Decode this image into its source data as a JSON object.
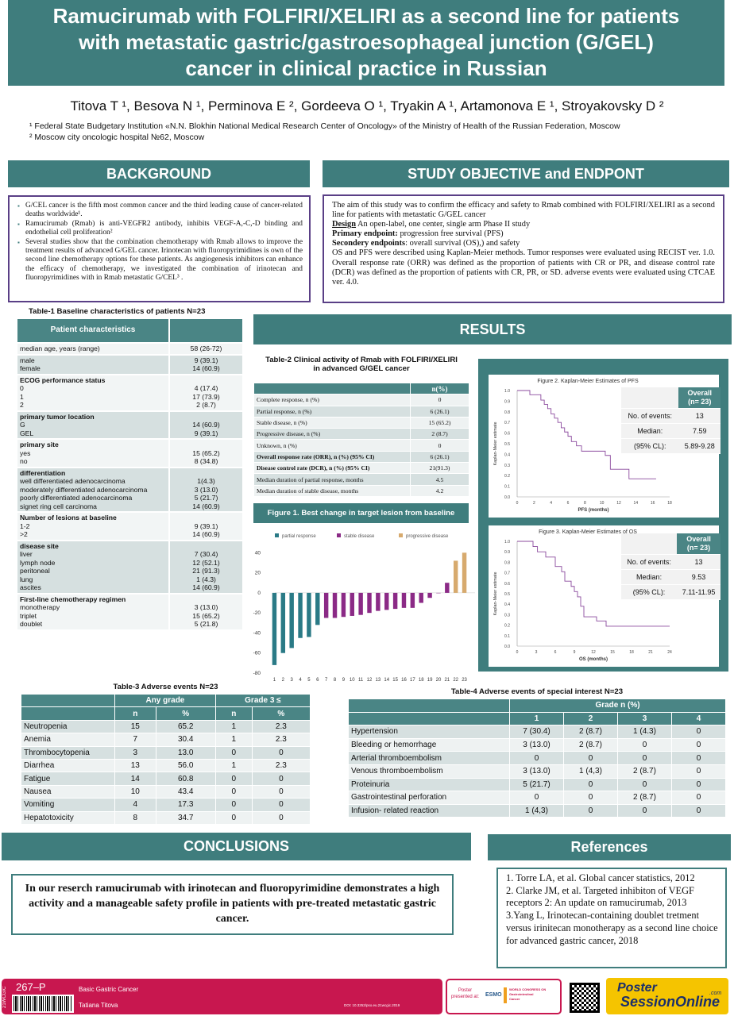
{
  "title": {
    "line1": "Ramucirumab with FOLFIRI/XELIRI as a second line for patients",
    "line2": "with metastatic gastric/gastroesophageal junction (G/GEL)",
    "line3": "cancer in clinical practice in Russian"
  },
  "authors": "Titova T ¹, Besova N ¹, Perminova E ², Gordeeva O ¹, Tryakin A ¹, Artamonova E ¹, Stroyakovsky D ²",
  "affiliations": [
    "¹ Federal State Budgetary Institution «N.N. Blokhin National Medical Research Center of Oncology» of the Ministry of Health of the Russian Federation, Moscow",
    "² Moscow city oncologic hospital  №62, Moscow"
  ],
  "background": {
    "heading": "BACKGROUND",
    "bullets": [
      "G/CEL cancer is the fifth most common cancer and the third leading cause of cancer-related deaths worldwide¹.",
      "Ramucirumab (Rmab) is anti-VEGFR2 antibody, inhibits VEGF-A,-C,-D binding and endothelial cell proliferation²",
      "Several studies show that the combination chemotherapy with Rmab allows to improve the treatment results of advanced G/GEL cancer. Irinotecan with fluoropyrimidines is own of the second line chemotherapy options for these patients. As angiogenesis inhibitors can enhance the efficacy of chemotherapy, we investigated the combination of irinotecan and fluoropyrimidines with in Rmab metastatic G/CEL³ ."
    ]
  },
  "objective": {
    "heading": "STUDY OBJECTIVE and ENDPONT",
    "intro": "The aim of this study was to confirm the efficacy and safety to Rmab combined with FOLFIRI/XELIRI as a second line for patients with metastatic G/GEL cancer",
    "design_label": "Design",
    "design_text": " An open-label, one center, single arm Phase II study",
    "primary_label": "Primary endpoint:",
    "primary_text": " progression free survival (PFS)",
    "secondary_label": "Secondery endpoints",
    "secondary_text": ": overall survival (OS),) and safety",
    "methods": "OS and PFS were described using Kaplan-Meier methods. Tumor responses were evaluated using RECIST ver. 1.0. Overall response rate (ORR) was defined as the proportion of patients with CR or PR, and disease control rate (DCR) was defined as the proportion of patients with CR, PR, or SD. adverse events were evaluated using CTCAE ver. 4.0."
  },
  "table1": {
    "caption": "Table-1 Baseline characteristics of patients  N=23",
    "header": "Patient characteristics",
    "rows": [
      {
        "label": "median age, years (range)",
        "value": "58 (26-72)",
        "shade": "w"
      },
      {
        "label": "male\nfemale",
        "value": "9 (39.1)\n14 (60.9)",
        "shade": "g"
      },
      {
        "label_b": "ECOG performance status",
        "label": "0\n1\n2",
        "value": "\n4 (17.4)\n17 (73.9)\n2 (8.7)",
        "shade": "w"
      },
      {
        "label_b": "primary tumor location",
        "label": "G\nGEL",
        "value": "\n14 (60.9)\n9 (39.1)",
        "shade": "g"
      },
      {
        "label_b": "primary site",
        "label": "yes\nno",
        "value": "\n15 (65.2)\n8 (34.8)",
        "shade": "w"
      },
      {
        "label_b": "differentiation",
        "label": "well differentiated adenocarcinoma\nmoderately differentiated adenocarcinoma\npoorly differentiated adenocarcinoma\nsignet ring cell carcinoma",
        "value": "\n1(4.3)\n3 (13.0)\n5 (21.7)\n14 (60.9)",
        "shade": "g"
      },
      {
        "label_b": "Number of lesions at baseline",
        "label": "1-2\n>2",
        "value": "\n9 (39.1)\n14 (60.9)",
        "shade": "w"
      },
      {
        "label_b": "disease site",
        "label": "liver\nlymph node\nperitoneal\nlung\nascites",
        "value": "\n7 (30.4)\n12 (52.1)\n21 (91.3)\n1 (4.3)\n14 (60.9)",
        "shade": "g"
      },
      {
        "label_b": "First-line chemotherapy regimen",
        "label": "monotherapy\ntriplet\ndoublet",
        "value": "\n3 (13.0)\n15 (65.2)\n5 (21.8)",
        "shade": "w"
      }
    ]
  },
  "results_heading": "RESULTS",
  "table2": {
    "caption1": "Table-2 Clinical activity of Rmab with FOLFIRI/XELIRI",
    "caption2": "in advanced G/GEL cancer",
    "col": "n(%)",
    "rows": [
      {
        "label": "Complete response, n (%)",
        "value": "0",
        "bold": false
      },
      {
        "label": "Partial response, n (%)",
        "value": "6 (26.1)",
        "bold": false
      },
      {
        "label": "Stable disease, n (%)",
        "value": "15 (65.2)",
        "bold": false
      },
      {
        "label": "Progressive disease, n (%)",
        "value": "2 (8.7)",
        "bold": false
      },
      {
        "label": "Unknown, n (%)",
        "value": "0",
        "bold": false
      },
      {
        "label": "Overall response rate (ORR), n (%) (95% CI)",
        "value": "6 (26.1)",
        "bold": true
      },
      {
        "label": "Disease control rate (DCR), n (%) (95% CI)",
        "value": "21(91.3)",
        "bold": true
      },
      {
        "label": "Median duration of partial response, months",
        "value": "4.5",
        "bold": false
      },
      {
        "label": "Median duration of stable disease, months",
        "value": "4.2",
        "bold": false
      }
    ]
  },
  "chart_data": [
    {
      "type": "bar",
      "title": "Figure 1. Best change in target lesion from baseline",
      "legend": [
        "partial response",
        "stable disease",
        "progressive disease"
      ],
      "colors": {
        "partial response": "#2a7a86",
        "stable disease": "#8b2a86",
        "progressive disease": "#d7aa6e"
      },
      "categories": [
        "1",
        "2",
        "3",
        "4",
        "5",
        "6",
        "7",
        "8",
        "9",
        "10",
        "11",
        "12",
        "13",
        "14",
        "15",
        "16",
        "17",
        "18",
        "19",
        "20",
        "21",
        "22",
        "23"
      ],
      "values": [
        -72,
        -60,
        -55,
        -45,
        -44,
        -32,
        -25,
        -25,
        -24,
        -23,
        -22,
        -20,
        -18,
        -17,
        -16,
        -15,
        -15,
        -10,
        -5,
        0,
        10,
        32,
        40
      ],
      "groups": [
        "partial response",
        "partial response",
        "partial response",
        "partial response",
        "partial response",
        "partial response",
        "stable disease",
        "stable disease",
        "stable disease",
        "stable disease",
        "stable disease",
        "stable disease",
        "stable disease",
        "stable disease",
        "stable disease",
        "stable disease",
        "stable disease",
        "stable disease",
        "stable disease",
        "stable disease",
        "stable disease",
        "progressive disease",
        "progressive disease"
      ],
      "yticks": [
        40,
        20,
        0,
        -20,
        -40,
        -60,
        -80
      ],
      "ylim": [
        -80,
        45
      ]
    },
    {
      "type": "line",
      "title": "Figure 2. Kaplan-Meier Estimates of PFS",
      "xlabel": "PFS (months)",
      "ylabel": "Kaplan-Meier estimate",
      "xticks": [
        0,
        2,
        4,
        6,
        8,
        10,
        12,
        14,
        16,
        18
      ],
      "yticks": [
        "0.0",
        "0.1",
        "0.2",
        "0.3",
        "0.4",
        "0.5",
        "0.6",
        "0.7",
        "0.8",
        "0.9",
        "1.0"
      ],
      "x": [
        0,
        1.5,
        2.8,
        3.2,
        3.6,
        4.0,
        4.4,
        4.8,
        5.2,
        5.6,
        6.0,
        6.4,
        7.0,
        7.6,
        8.0,
        9.0,
        10.4,
        11.0,
        12.4,
        13.2,
        16.4
      ],
      "y": [
        1.0,
        0.96,
        0.91,
        0.87,
        0.83,
        0.78,
        0.74,
        0.7,
        0.65,
        0.61,
        0.57,
        0.52,
        0.48,
        0.43,
        0.43,
        0.43,
        0.39,
        0.26,
        0.26,
        0.17,
        0.17
      ]
    },
    {
      "type": "line",
      "title": "Figure 3. Kaplan-Meier Estimates of OS",
      "xlabel": "OS (months)",
      "ylabel": "Kaplan-Meier estimate",
      "xticks": [
        0,
        3,
        6,
        9,
        12,
        15,
        18,
        21,
        24
      ],
      "yticks": [
        "0.0",
        "0.1",
        "0.2",
        "0.3",
        "0.4",
        "0.5",
        "0.6",
        "0.7",
        "0.8",
        "0.9",
        "1.0"
      ],
      "x": [
        0,
        2.5,
        3.2,
        4.5,
        6.0,
        7.0,
        7.5,
        8.5,
        9.0,
        9.5,
        10.0,
        10.5,
        12.5,
        14.0,
        24.0
      ],
      "y": [
        1.0,
        0.95,
        0.9,
        0.85,
        0.76,
        0.71,
        0.62,
        0.57,
        0.52,
        0.47,
        0.38,
        0.28,
        0.24,
        0.19,
        0.19
      ]
    }
  ],
  "km_pfs_table": {
    "header": "Overall\n(n= 23)",
    "rows": [
      {
        "label": "No. of events:",
        "value": "13"
      },
      {
        "label": "Median:",
        "value": "7.59"
      },
      {
        "label": "(95% CL):",
        "value": "5.89-9.28"
      }
    ]
  },
  "km_os_table": {
    "header": "Overall\n(n= 23)",
    "rows": [
      {
        "label": "No. of events:",
        "value": "13"
      },
      {
        "label": "Median:",
        "value": "9.53"
      },
      {
        "label": "(95% CL):",
        "value": "7.11-11.95"
      }
    ]
  },
  "table3": {
    "caption": "Table-3 Adverse events N=23",
    "group1": "Any grade",
    "group2": "Grade 3 ≤",
    "cols": [
      "n",
      "%",
      "n",
      "%"
    ],
    "rows": [
      [
        "Neutropenia",
        "15",
        "65.2",
        "1",
        "2.3"
      ],
      [
        "Anemia",
        "7",
        "30.4",
        "1",
        "2.3"
      ],
      [
        "Thrombocytopenia",
        "3",
        "13.0",
        "0",
        "0"
      ],
      [
        "Diarrhea",
        "13",
        "56.0",
        "1",
        "2.3"
      ],
      [
        "Fatigue",
        "14",
        "60.8",
        "0",
        "0"
      ],
      [
        "Nausea",
        "10",
        "43.4",
        "0",
        "0"
      ],
      [
        "Vomiting",
        "4",
        "17.3",
        "0",
        "0"
      ],
      [
        "Hepatotoxicity",
        "8",
        "34.7",
        "0",
        "0"
      ]
    ]
  },
  "table4": {
    "caption": "Table-4 Adverse events  of special interest N=23",
    "group": "Grade  n (%)",
    "cols": [
      "1",
      "2",
      "3",
      "4"
    ],
    "rows": [
      [
        "Hypertension",
        "7 (30.4)",
        "2 (8.7)",
        "1 (4.3)",
        "0"
      ],
      [
        "Bleeding or hemorrhage",
        "3 (13.0)",
        "2 (8.7)",
        "0",
        "0"
      ],
      [
        "Arterial thromboembolism",
        "0",
        "0",
        "0",
        "0"
      ],
      [
        "Venous  thromboembolism",
        "3 (13.0)",
        "1 (4,3)",
        "2 (8.7)",
        "0"
      ],
      [
        "Proteinuria",
        "5 (21.7)",
        "0",
        "0",
        "0"
      ],
      [
        "Gastrointestinal perforation",
        "0",
        "0",
        "2 (8.7)",
        "0"
      ],
      [
        "Infusion- related reaction",
        "1 (4,3)",
        "0",
        "0",
        "0"
      ]
    ]
  },
  "conclusions": {
    "heading": "CONCLUSIONS",
    "text": "In our reserch ramucirumab with irinotecan and fluoropyrimidine demonstrates a high activity and a manageable safety profile in patients with pre-treated metastatic gastric cancer."
  },
  "references": {
    "heading": "References",
    "items": [
      "1. Torre LA, et al. Global cancer statistics, 2012",
      "2. Clarke JM, et al. Targeted inhibiton of VEGF receptors 2: An update on ramucirumab, 2013",
      "3.Yang L, Irinotecan-containing doublet tretment versus irinitecan monotherapy as a second line choice for advanced gastric cancer, 2018"
    ]
  },
  "footer": {
    "side_code": "21WCGIC",
    "poster_number": "267–P",
    "category": "Basic Gastric Cancer",
    "presenter": "Tatiana Titova",
    "doi": "DOI: 10.3252/pso.eu.21wcgic.2019",
    "presented_at_1": "Poster",
    "presented_at_2": "presented at:",
    "esmo": "ESMO",
    "congress_1": "WORLD CONGRESS ON",
    "congress_2": "Gastrointestinal",
    "congress_3": "Cancer",
    "pso_1": "Poster",
    "pso_2": "SessionOnline",
    "pso_com": ".com",
    "colors": {
      "pink": "#c8174f",
      "yellow": "#f5c400",
      "teal": "#3f7d7d"
    }
  }
}
